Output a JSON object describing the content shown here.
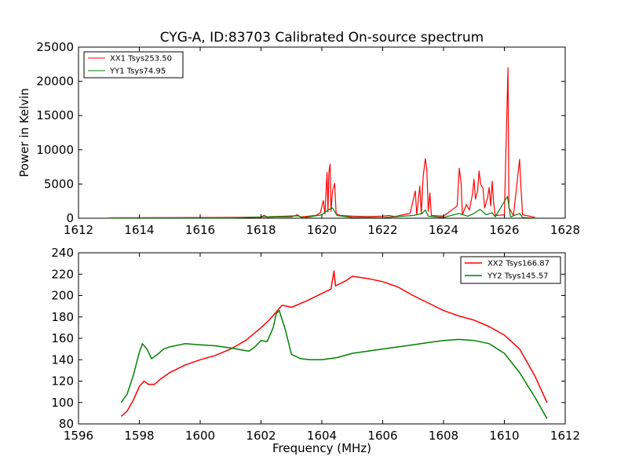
{
  "chart_data": [
    {
      "type": "line",
      "title": "CYG-A, ID:83703 Calibrated On-source spectrum",
      "xlabel": "",
      "ylabel": "Power in Kelvin",
      "xlim": [
        1612,
        1628
      ],
      "ylim": [
        0,
        25000
      ],
      "x_ticks": [
        "1612",
        "1614",
        "1616",
        "1618",
        "1620",
        "1622",
        "1624",
        "1626",
        "1628"
      ],
      "y_ticks": [
        "0",
        "5000",
        "10000",
        "15000",
        "20000",
        "25000"
      ],
      "legend_position": "top-left",
      "grid": false,
      "series": [
        {
          "name": "XX1 Tsys253.50",
          "color": "#ff0000",
          "points": [
            [
              1613.0,
              60
            ],
            [
              1614.0,
              80
            ],
            [
              1615.0,
              90
            ],
            [
              1616.0,
              100
            ],
            [
              1617.0,
              110
            ],
            [
              1618.0,
              160
            ],
            [
              1618.1,
              450
            ],
            [
              1618.2,
              160
            ],
            [
              1618.5,
              200
            ],
            [
              1619.0,
              200
            ],
            [
              1619.2,
              500
            ],
            [
              1619.3,
              180
            ],
            [
              1619.8,
              400
            ],
            [
              1619.95,
              800
            ],
            [
              1620.05,
              2600
            ],
            [
              1620.1,
              600
            ],
            [
              1620.17,
              6700
            ],
            [
              1620.2,
              900
            ],
            [
              1620.23,
              6600
            ],
            [
              1620.27,
              7900
            ],
            [
              1620.3,
              1000
            ],
            [
              1620.35,
              4000
            ],
            [
              1620.42,
              5100
            ],
            [
              1620.47,
              700
            ],
            [
              1620.6,
              400
            ],
            [
              1621.0,
              300
            ],
            [
              1621.5,
              250
            ],
            [
              1622.0,
              300
            ],
            [
              1622.2,
              400
            ],
            [
              1622.4,
              250
            ],
            [
              1622.9,
              700
            ],
            [
              1623.0,
              2600
            ],
            [
              1623.07,
              4000
            ],
            [
              1623.12,
              500
            ],
            [
              1623.22,
              4700
            ],
            [
              1623.27,
              600
            ],
            [
              1623.33,
              6000
            ],
            [
              1623.4,
              8700
            ],
            [
              1623.45,
              7200
            ],
            [
              1623.5,
              1000
            ],
            [
              1623.55,
              3700
            ],
            [
              1623.6,
              400
            ],
            [
              1624.0,
              300
            ],
            [
              1624.45,
              1800
            ],
            [
              1624.52,
              7300
            ],
            [
              1624.58,
              5000
            ],
            [
              1624.62,
              500
            ],
            [
              1624.75,
              2000
            ],
            [
              1624.85,
              1200
            ],
            [
              1624.95,
              3500
            ],
            [
              1625.0,
              5700
            ],
            [
              1625.05,
              2800
            ],
            [
              1625.12,
              4000
            ],
            [
              1625.17,
              6900
            ],
            [
              1625.22,
              5000
            ],
            [
              1625.3,
              4300
            ],
            [
              1625.35,
              1500
            ],
            [
              1625.45,
              3000
            ],
            [
              1625.5,
              4500
            ],
            [
              1625.55,
              1800
            ],
            [
              1625.6,
              5400
            ],
            [
              1625.65,
              2200
            ],
            [
              1625.7,
              400
            ],
            [
              1626.0,
              500
            ],
            [
              1626.12,
              22000
            ],
            [
              1626.15,
              1500
            ],
            [
              1626.3,
              400
            ],
            [
              1626.5,
              8600
            ],
            [
              1626.55,
              4200
            ],
            [
              1626.6,
              500
            ],
            [
              1627.0,
              150
            ]
          ]
        },
        {
          "name": "YY1 Tsys74.95",
          "color": "#008000",
          "points": [
            [
              1613.0,
              20
            ],
            [
              1615.0,
              30
            ],
            [
              1617.0,
              40
            ],
            [
              1619.2,
              350
            ],
            [
              1619.4,
              60
            ],
            [
              1620.0,
              500
            ],
            [
              1620.2,
              1200
            ],
            [
              1620.35,
              1500
            ],
            [
              1620.5,
              400
            ],
            [
              1621.0,
              120
            ],
            [
              1622.0,
              80
            ],
            [
              1623.0,
              400
            ],
            [
              1623.3,
              700
            ],
            [
              1623.4,
              1200
            ],
            [
              1623.5,
              300
            ],
            [
              1624.0,
              100
            ],
            [
              1624.5,
              700
            ],
            [
              1624.8,
              300
            ],
            [
              1625.0,
              700
            ],
            [
              1625.2,
              1300
            ],
            [
              1625.4,
              500
            ],
            [
              1625.6,
              800
            ],
            [
              1625.7,
              200
            ],
            [
              1626.1,
              3200
            ],
            [
              1626.2,
              200
            ],
            [
              1626.5,
              700
            ],
            [
              1626.6,
              100
            ],
            [
              1627.0,
              30
            ]
          ]
        }
      ]
    },
    {
      "type": "line",
      "title": "",
      "xlabel": "Frequency (MHz)",
      "ylabel": "",
      "xlim": [
        1596,
        1612
      ],
      "ylim": [
        80,
        240
      ],
      "x_ticks": [
        "1596",
        "1598",
        "1600",
        "1602",
        "1604",
        "1606",
        "1608",
        "1610",
        "1612"
      ],
      "y_ticks": [
        "80",
        "100",
        "120",
        "140",
        "160",
        "180",
        "200",
        "220",
        "240"
      ],
      "legend_position": "top-right",
      "grid": false,
      "series": [
        {
          "name": "XX2 Tsys166.87",
          "color": "#ff0000",
          "points": [
            [
              1597.4,
              87
            ],
            [
              1597.6,
              92
            ],
            [
              1597.8,
              102
            ],
            [
              1598.0,
              115
            ],
            [
              1598.15,
              120
            ],
            [
              1598.3,
              117
            ],
            [
              1598.5,
              117
            ],
            [
              1598.7,
              122
            ],
            [
              1599.0,
              128
            ],
            [
              1599.5,
              135
            ],
            [
              1600.0,
              140
            ],
            [
              1600.5,
              144
            ],
            [
              1601.0,
              150
            ],
            [
              1601.5,
              158
            ],
            [
              1602.0,
              170
            ],
            [
              1602.3,
              178
            ],
            [
              1602.6,
              188
            ],
            [
              1602.7,
              191
            ],
            [
              1603.0,
              189
            ],
            [
              1603.5,
              195
            ],
            [
              1604.0,
              202
            ],
            [
              1604.3,
              206
            ],
            [
              1604.4,
              223
            ],
            [
              1604.45,
              209
            ],
            [
              1604.8,
              214
            ],
            [
              1605.0,
              218
            ],
            [
              1605.5,
              216
            ],
            [
              1606.0,
              213
            ],
            [
              1606.5,
              208
            ],
            [
              1607.0,
              200
            ],
            [
              1607.5,
              193
            ],
            [
              1608.0,
              186
            ],
            [
              1608.5,
              181
            ],
            [
              1609.0,
              177
            ],
            [
              1609.5,
              171
            ],
            [
              1610.0,
              163
            ],
            [
              1610.5,
              150
            ],
            [
              1611.0,
              125
            ],
            [
              1611.4,
              100
            ]
          ]
        },
        {
          "name": "YY2 Tsys145.57",
          "color": "#008000",
          "points": [
            [
              1597.4,
              100
            ],
            [
              1597.6,
              108
            ],
            [
              1597.8,
              125
            ],
            [
              1598.0,
              147
            ],
            [
              1598.1,
              155
            ],
            [
              1598.25,
              150
            ],
            [
              1598.4,
              141
            ],
            [
              1598.6,
              145
            ],
            [
              1598.8,
              150
            ],
            [
              1599.0,
              152
            ],
            [
              1599.5,
              155
            ],
            [
              1600.0,
              154
            ],
            [
              1600.5,
              153
            ],
            [
              1601.0,
              151
            ],
            [
              1601.4,
              149
            ],
            [
              1601.6,
              148
            ],
            [
              1601.8,
              152
            ],
            [
              1602.0,
              158
            ],
            [
              1602.2,
              157
            ],
            [
              1602.4,
              170
            ],
            [
              1602.5,
              183
            ],
            [
              1602.6,
              186
            ],
            [
              1602.8,
              168
            ],
            [
              1603.0,
              145
            ],
            [
              1603.3,
              141
            ],
            [
              1603.6,
              140
            ],
            [
              1604.0,
              140
            ],
            [
              1604.5,
              142
            ],
            [
              1605.0,
              146
            ],
            [
              1605.5,
              148
            ],
            [
              1606.0,
              150
            ],
            [
              1606.5,
              152
            ],
            [
              1607.0,
              154
            ],
            [
              1607.5,
              156
            ],
            [
              1608.0,
              158
            ],
            [
              1608.5,
              159
            ],
            [
              1609.0,
              158
            ],
            [
              1609.5,
              155
            ],
            [
              1610.0,
              146
            ],
            [
              1610.5,
              128
            ],
            [
              1611.0,
              105
            ],
            [
              1611.4,
              85
            ]
          ]
        }
      ]
    }
  ]
}
